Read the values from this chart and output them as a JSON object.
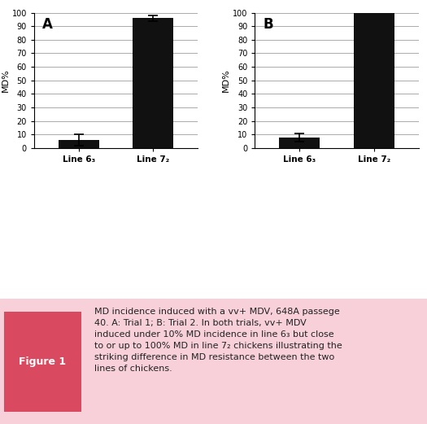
{
  "panel_A": {
    "label": "A",
    "categories": [
      "Line 6₃",
      "Line 7₂"
    ],
    "values": [
      6.0,
      96.0
    ],
    "errors": [
      4.0,
      2.0
    ],
    "bar_color": "#111111",
    "ylim": [
      0,
      100
    ],
    "yticks": [
      0,
      10,
      20,
      30,
      40,
      50,
      60,
      70,
      80,
      90,
      100
    ],
    "ylabel": "MD%"
  },
  "panel_B": {
    "label": "B",
    "categories": [
      "Line 6₃",
      "Line 7₂"
    ],
    "values": [
      8.0,
      100.0
    ],
    "errors": [
      3.0,
      0.0
    ],
    "bar_color": "#111111",
    "ylim": [
      0,
      100
    ],
    "yticks": [
      0,
      10,
      20,
      30,
      40,
      50,
      60,
      70,
      80,
      90,
      100
    ],
    "ylabel": "MD%"
  },
  "caption_label": "Figure 1",
  "caption_text": "MD incidence induced with a vv+ MDV, 648A passege\n40. A: Trial 1; B: Trial 2. In both trials, vv+ MDV\ninduced under 10% MD incidence in line 6₃ but close\nto or up to 100% MD in line 7₂ chickens illustrating the\nstriking difference in MD resistance between the two\nlines of chickens.",
  "caption_bg": "#f5a0b0",
  "caption_label_bg": "#e05070",
  "figure_bg": "#ffffff"
}
